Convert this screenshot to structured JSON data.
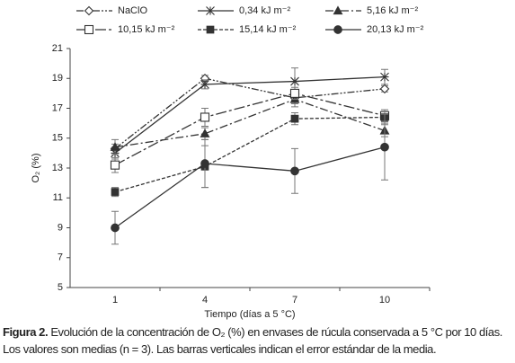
{
  "chart_data": {
    "type": "line",
    "x_label": "Tiempo (días a 5 °C)",
    "y_label": "O₂ (%)",
    "categories": [
      "1",
      "4",
      "7",
      "10"
    ],
    "ylim": [
      5,
      21
    ],
    "yticks": [
      5,
      7,
      9,
      11,
      13,
      15,
      17,
      19,
      21
    ],
    "series": [
      {
        "name": "NaClO",
        "color": "#333333",
        "values": [
          14.3,
          19.0,
          17.7,
          18.3
        ],
        "errors": [
          0.3,
          0.2,
          0.4,
          0.2
        ]
      },
      {
        "name": "0,34 kJ m⁻²",
        "color": "#333333",
        "values": [
          14.0,
          18.6,
          18.8,
          19.1
        ],
        "errors": [
          0.4,
          0.3,
          0.9,
          0.5
        ]
      },
      {
        "name": "5,16 kJ m⁻²",
        "color": "#333333",
        "values": [
          14.4,
          15.3,
          17.6,
          15.5
        ],
        "errors": [
          0.5,
          0.4,
          0.5,
          0.4
        ]
      },
      {
        "name": "10,15 kJ m⁻²",
        "color": "#333333",
        "values": [
          13.2,
          16.4,
          18.0,
          16.5
        ],
        "errors": [
          0.5,
          0.6,
          0.4,
          0.4
        ]
      },
      {
        "name": "15,14 kJ m⁻²",
        "color": "#333333",
        "values": [
          11.4,
          13.1,
          16.3,
          16.4
        ],
        "errors": [
          0.3,
          1.4,
          0.4,
          0.4
        ]
      },
      {
        "name": "20,13 kJ m⁻²",
        "color": "#333333",
        "values": [
          9.0,
          13.3,
          12.8,
          14.4
        ],
        "errors": [
          1.1,
          1.6,
          1.5,
          2.2
        ]
      }
    ]
  },
  "caption": {
    "label": "Figura 2.",
    "text": "Evolución de la concentración de O₂ (%) en envases de rúcula conservada a 5 °C por 10 días. Los valores son medias (n = 3). Las barras verticales indican el error estándar de la media."
  }
}
